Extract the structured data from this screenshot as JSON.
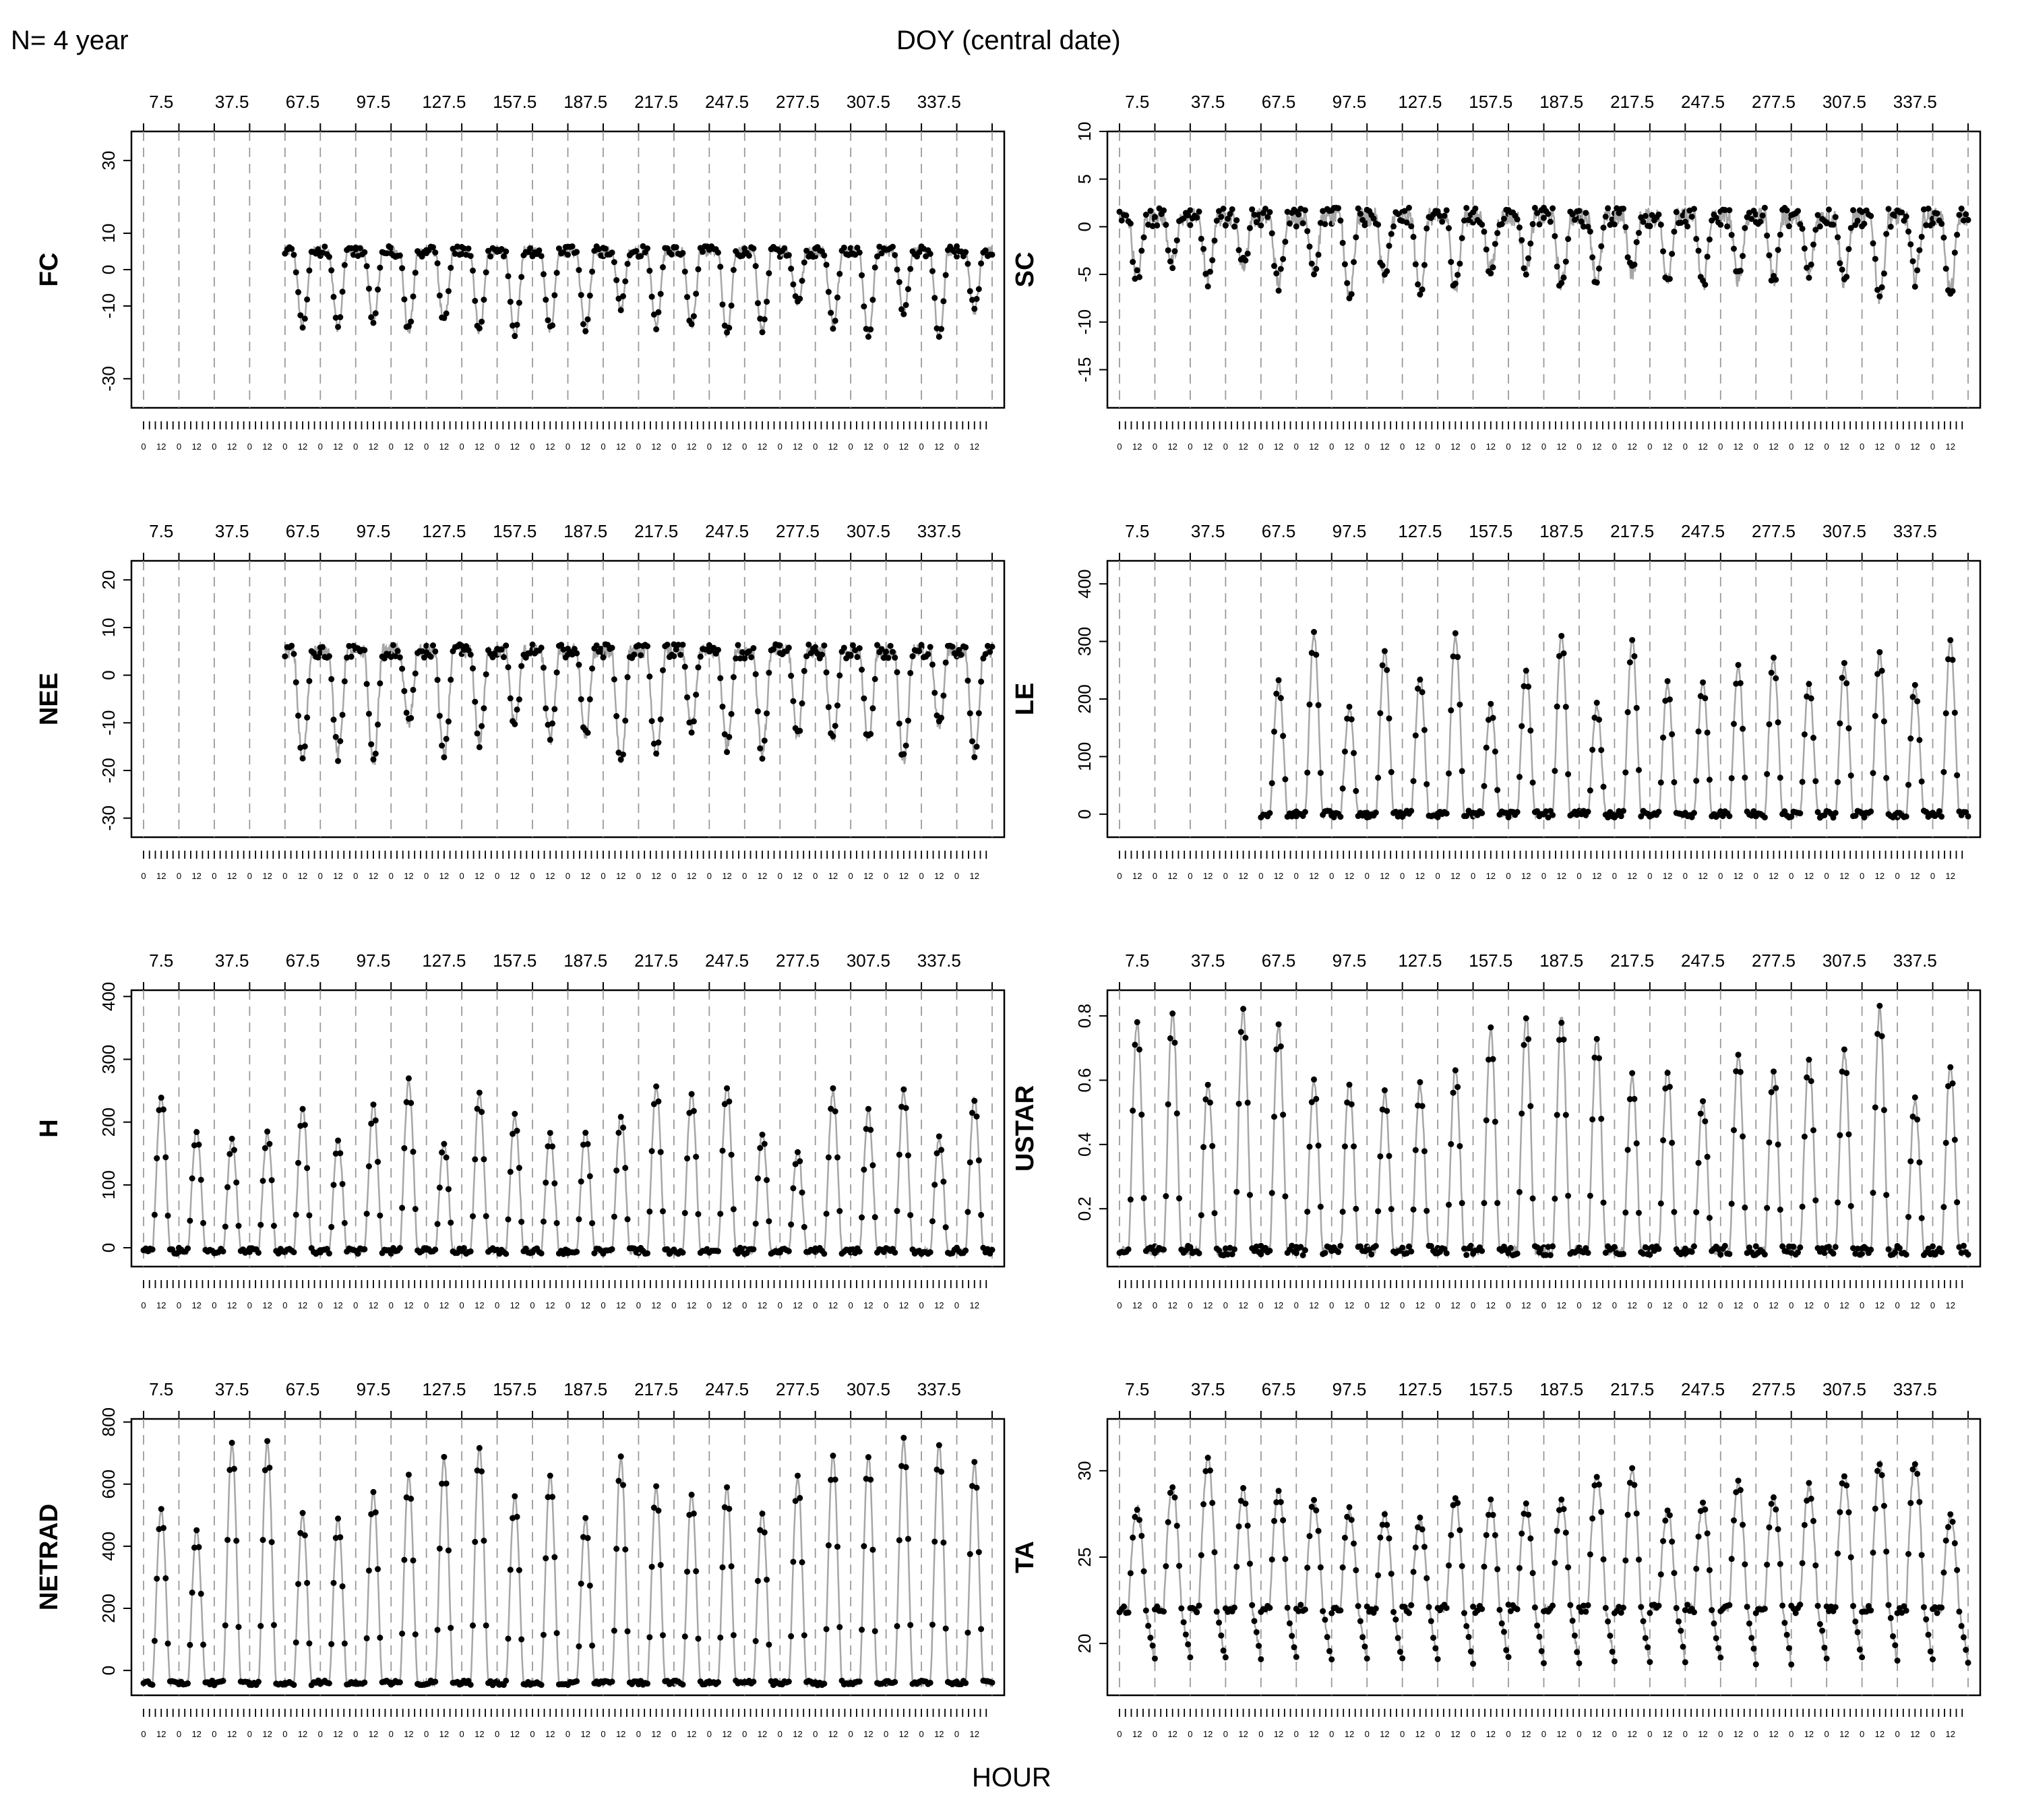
{
  "header": {
    "n_label": "N= 4 year",
    "top_axis_title": "DOY (central date)",
    "bottom_axis_title": "HOUR"
  },
  "colors": {
    "line": "#a6a6a6",
    "points": "#000000",
    "dashed_grid": "#9a9a9a",
    "axes": "#000000",
    "background": "#ffffff"
  },
  "chart_data": [
    {
      "type": "line",
      "variable": "FC",
      "ylabel": "FC",
      "ylim": [
        -38,
        38
      ],
      "yticks": [
        -30,
        -10,
        0,
        10,
        30
      ],
      "top_ticks": [
        "7.5",
        "37.5",
        "67.5",
        "97.5",
        "127.5",
        "157.5",
        "187.5",
        "217.5",
        "247.5",
        "277.5",
        "307.5",
        "337.5"
      ],
      "hour_ticks": [
        "0",
        "12"
      ],
      "n_months": 24,
      "months_present": [
        4,
        5,
        6,
        7,
        8,
        9,
        10,
        11,
        12,
        13,
        14,
        15,
        16,
        17,
        18,
        19,
        20,
        21,
        22,
        23
      ],
      "diurnal": {
        "night": 5,
        "day_min": -15,
        "noise": 3
      }
    },
    {
      "type": "line",
      "variable": "SC",
      "ylabel": "SC",
      "ylim": [
        -19,
        10
      ],
      "yticks": [
        -15,
        -10,
        -5,
        0,
        5,
        10
      ],
      "top_ticks": [
        "7.5",
        "37.5",
        "67.5",
        "97.5",
        "127.5",
        "157.5",
        "187.5",
        "217.5",
        "247.5",
        "277.5",
        "307.5",
        "337.5"
      ],
      "hour_ticks": [
        "0",
        "12"
      ],
      "n_months": 24,
      "months_present": [
        0,
        1,
        2,
        3,
        4,
        5,
        6,
        7,
        8,
        9,
        10,
        11,
        12,
        13,
        14,
        15,
        16,
        17,
        18,
        19,
        20,
        21,
        22,
        23
      ],
      "diurnal": {
        "night": 1,
        "day_min": -6,
        "noise": 2
      }
    },
    {
      "type": "line",
      "variable": "NEE",
      "ylabel": "NEE",
      "ylim": [
        -34,
        24
      ],
      "yticks": [
        -30,
        -20,
        -10,
        0,
        10,
        20
      ],
      "top_ticks": [
        "7.5",
        "37.5",
        "67.5",
        "97.5",
        "127.5",
        "157.5",
        "187.5",
        "217.5",
        "247.5",
        "277.5",
        "307.5",
        "337.5"
      ],
      "hour_ticks": [
        "0",
        "12"
      ],
      "n_months": 24,
      "months_present": [
        4,
        5,
        6,
        7,
        8,
        9,
        10,
        11,
        12,
        13,
        14,
        15,
        16,
        17,
        18,
        19,
        20,
        21,
        22,
        23
      ],
      "diurnal": {
        "night": 5,
        "day_min": -15,
        "noise": 3
      }
    },
    {
      "type": "line",
      "variable": "LE",
      "ylabel": "LE",
      "ylim": [
        -40,
        440
      ],
      "yticks": [
        0,
        100,
        200,
        300,
        400
      ],
      "top_ticks": [
        "7.5",
        "37.5",
        "67.5",
        "97.5",
        "127.5",
        "157.5",
        "187.5",
        "217.5",
        "247.5",
        "277.5",
        "307.5",
        "337.5"
      ],
      "hour_ticks": [
        "0",
        "12"
      ],
      "n_months": 24,
      "months_present": [
        4,
        5,
        6,
        7,
        8,
        9,
        10,
        11,
        12,
        13,
        14,
        15,
        16,
        17,
        18,
        19,
        20,
        21,
        22,
        23
      ],
      "diurnal": {
        "night": 0,
        "day_peak": 260,
        "noise": 12
      }
    },
    {
      "type": "line",
      "variable": "H",
      "ylabel": "H",
      "ylim": [
        -30,
        410
      ],
      "yticks": [
        0,
        100,
        200,
        300,
        400
      ],
      "top_ticks": [
        "7.5",
        "37.5",
        "67.5",
        "97.5",
        "127.5",
        "157.5",
        "187.5",
        "217.5",
        "247.5",
        "277.5",
        "307.5",
        "337.5"
      ],
      "hour_ticks": [
        "0",
        "12"
      ],
      "n_months": 24,
      "months_present": [
        0,
        1,
        2,
        3,
        4,
        5,
        6,
        7,
        8,
        9,
        10,
        11,
        12,
        13,
        14,
        15,
        16,
        17,
        18,
        19,
        20,
        21,
        22,
        23
      ],
      "diurnal": {
        "night": -5,
        "day_peak": 220,
        "noise": 10
      }
    },
    {
      "type": "line",
      "variable": "USTAR",
      "ylabel": "USTAR",
      "ylim": [
        0.02,
        0.88
      ],
      "yticks": [
        0.2,
        0.4,
        0.6,
        0.8
      ],
      "top_ticks": [
        "7.5",
        "37.5",
        "67.5",
        "97.5",
        "127.5",
        "157.5",
        "187.5",
        "217.5",
        "247.5",
        "277.5",
        "307.5",
        "337.5"
      ],
      "hour_ticks": [
        "0",
        "12"
      ],
      "n_months": 24,
      "months_present": [
        0,
        1,
        2,
        3,
        4,
        5,
        6,
        7,
        8,
        9,
        10,
        11,
        12,
        13,
        14,
        15,
        16,
        17,
        18,
        19,
        20,
        21,
        22,
        23
      ],
      "diurnal": {
        "night": 0.07,
        "day_peak": 0.7,
        "noise": 0.03
      }
    },
    {
      "type": "line",
      "variable": "NETRAD",
      "ylabel": "NETRAD",
      "ylim": [
        -80,
        810
      ],
      "yticks": [
        0,
        200,
        400,
        600,
        800
      ],
      "top_ticks": [
        "7.5",
        "37.5",
        "67.5",
        "97.5",
        "127.5",
        "157.5",
        "187.5",
        "217.5",
        "247.5",
        "277.5",
        "307.5",
        "337.5"
      ],
      "hour_ticks": [
        "0",
        "12"
      ],
      "n_months": 24,
      "months_present": [
        0,
        1,
        2,
        3,
        4,
        5,
        6,
        7,
        8,
        9,
        10,
        11,
        12,
        13,
        14,
        15,
        16,
        17,
        18,
        19,
        20,
        21,
        22,
        23
      ],
      "diurnal": {
        "night": -40,
        "day_peak": 650,
        "noise": 15
      }
    },
    {
      "type": "line",
      "variable": "TA",
      "ylabel": "TA",
      "ylim": [
        17,
        33
      ],
      "yticks": [
        20,
        25,
        30
      ],
      "top_ticks": [
        "7.5",
        "37.5",
        "67.5",
        "97.5",
        "127.5",
        "157.5",
        "187.5",
        "217.5",
        "247.5",
        "277.5",
        "307.5",
        "337.5"
      ],
      "hour_ticks": [
        "0",
        "12"
      ],
      "n_months": 24,
      "months_present": [
        0,
        1,
        2,
        3,
        4,
        5,
        6,
        7,
        8,
        9,
        10,
        11,
        12,
        13,
        14,
        15,
        16,
        17,
        18,
        19,
        20,
        21,
        22,
        23
      ],
      "diurnal": {
        "night": 22,
        "day_peak": 30,
        "noise": 0.5
      }
    }
  ]
}
